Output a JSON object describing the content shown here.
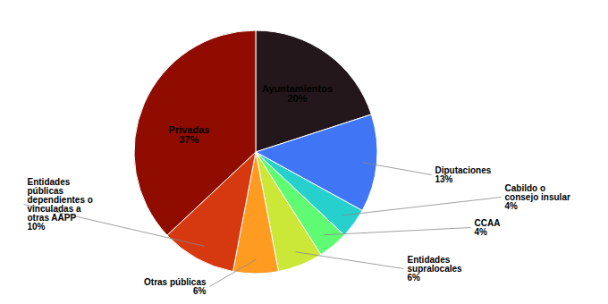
{
  "chart_data": {
    "type": "pie",
    "categories": [
      "Ayuntamientos",
      "Diputaciones",
      "Cabildo o\nconsejo insular",
      "CCAA",
      "Entidades\nsupralocales",
      "Otras públicas",
      "Entidades\npúblicas\ndependientes o\nvinculadas a\notras AAPP",
      "Privadas"
    ],
    "values": [
      20,
      13,
      4,
      4,
      6,
      6,
      10,
      37
    ],
    "value_labels": [
      "20%",
      "13%",
      "4%",
      "4%",
      "6%",
      "6%",
      "10%",
      "37%"
    ],
    "data_labels": true
  }
}
